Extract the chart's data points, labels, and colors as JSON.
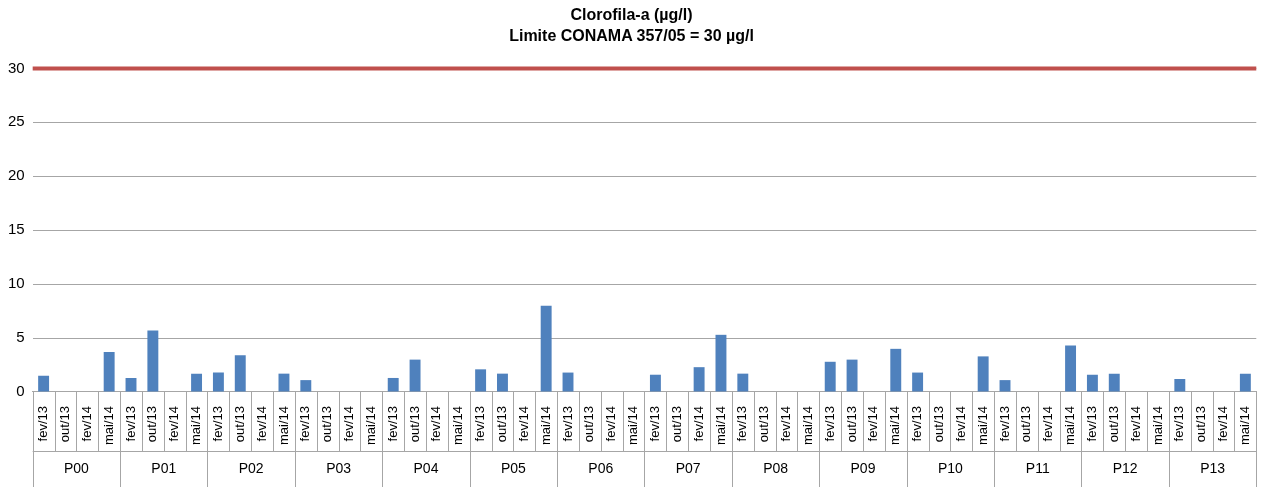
{
  "chart_data": {
    "type": "bar",
    "title": "Clorofila-a (µg/l)",
    "subtitle": "Limite CONAMA 357/05 = 30 µg/l",
    "categories": [
      "fev/13",
      "out/13",
      "fev/14",
      "mai/14",
      "fev/13",
      "out/13",
      "fev/14",
      "mai/14",
      "fev/13",
      "out/13",
      "fev/14",
      "mai/14",
      "fev/13",
      "out/13",
      "fev/14",
      "mai/14",
      "fev/13",
      "out/13",
      "fev/14",
      "mai/14",
      "fev/13",
      "out/13",
      "fev/14",
      "mai/14",
      "fev/13",
      "out/13",
      "fev/14",
      "mai/14",
      "fev/13",
      "out/13",
      "fev/14",
      "mai/14",
      "fev/13",
      "out/13",
      "fev/14",
      "mai/14",
      "fev/13",
      "out/13",
      "fev/14",
      "mai/14",
      "fev/13",
      "out/13",
      "fev/14",
      "mai/14",
      "fev/13",
      "out/13",
      "fev/14",
      "mai/14",
      "fev/13",
      "out/13",
      "fev/14",
      "mai/14",
      "fev/13",
      "out/13",
      "fev/14",
      "mai/14"
    ],
    "values": [
      1.5,
      null,
      null,
      3.7,
      1.3,
      5.7,
      null,
      1.7,
      1.8,
      3.4,
      null,
      1.7,
      1.1,
      null,
      null,
      null,
      1.3,
      3.0,
      null,
      null,
      2.1,
      1.7,
      null,
      8.0,
      1.8,
      null,
      null,
      null,
      1.6,
      null,
      2.3,
      5.3,
      1.7,
      null,
      null,
      null,
      2.8,
      3.0,
      null,
      4.0,
      1.8,
      null,
      null,
      3.3,
      1.1,
      null,
      null,
      4.3,
      1.6,
      1.7,
      null,
      null,
      1.2,
      null,
      null,
      1.7
    ],
    "color": "#4f81bd",
    "annotations": [
      "P00",
      "P01",
      "P02",
      "P03",
      "P04",
      "P05",
      "P06",
      "P07",
      "P08",
      "P09",
      "P10",
      "P11",
      "P12",
      "P13"
    ],
    "ylim": [
      0,
      30
    ],
    "yticks": [
      0,
      5,
      10,
      15,
      20,
      25,
      30
    ],
    "grid": "y",
    "legend": false,
    "ref_lines": [
      {
        "axis": "y",
        "value": 30,
        "color": "#c0504d"
      }
    ]
  }
}
